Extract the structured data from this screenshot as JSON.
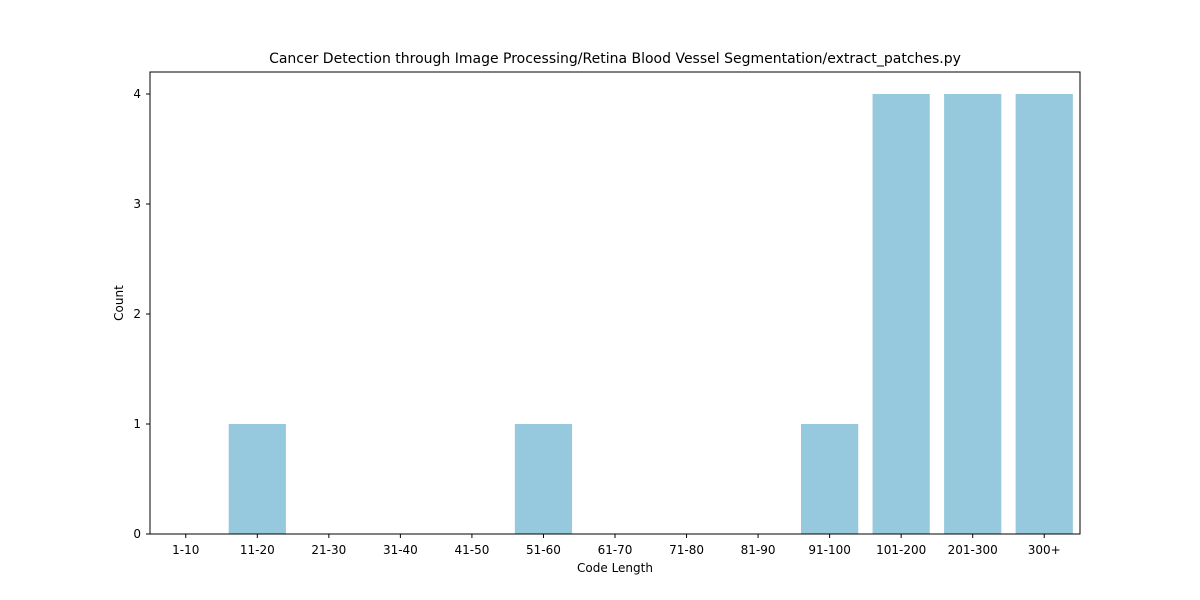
{
  "chart_data": {
    "type": "bar",
    "title": "Cancer Detection through Image Processing/Retina Blood Vessel Segmentation/extract_patches.py",
    "xlabel": "Code Length",
    "ylabel": "Count",
    "categories": [
      "1-10",
      "11-20",
      "21-30",
      "31-40",
      "41-50",
      "51-60",
      "61-70",
      "71-80",
      "81-90",
      "91-100",
      "101-200",
      "201-300",
      "300+"
    ],
    "values": [
      0,
      1,
      0,
      0,
      0,
      1,
      0,
      0,
      0,
      1,
      4,
      4,
      4
    ],
    "ylim": [
      0,
      4.2
    ],
    "yticks": [
      0,
      1,
      2,
      3,
      4
    ],
    "bar_color": "#96c9de",
    "grid": false,
    "legend": "none"
  }
}
